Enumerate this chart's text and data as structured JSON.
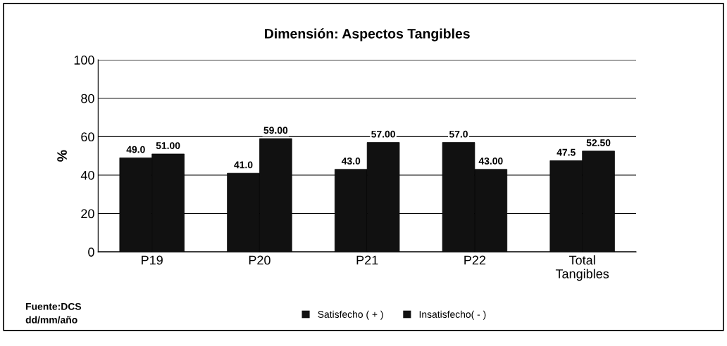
{
  "chart_data": {
    "type": "bar",
    "title": "Dimensión: Aspectos Tangibles",
    "ylabel": "%",
    "categories": [
      "P19",
      "P20",
      "P21",
      "P22",
      "Total\nTangibles"
    ],
    "series": [
      {
        "name": "Satisfecho ( + )",
        "color": "#111111",
        "values": [
          49.0,
          41.0,
          43.0,
          57.0,
          47.5
        ],
        "value_labels": [
          "49.0",
          "41.0",
          "43.0",
          "57.0",
          "47.5"
        ]
      },
      {
        "name": "Insatisfecho( - )",
        "color": "#111111",
        "values": [
          51.0,
          59.0,
          57.0,
          43.0,
          52.5
        ],
        "value_labels": [
          "51.00",
          "59.00",
          "57.00",
          "43.00",
          "52.50"
        ]
      }
    ],
    "ylim": [
      0,
      100
    ],
    "yticks": [
      0,
      20,
      40,
      60,
      80,
      100
    ],
    "grid": "y",
    "legend": "bottom",
    "annotations": [
      "Fuente:DCS\ndd/mm/año"
    ]
  }
}
